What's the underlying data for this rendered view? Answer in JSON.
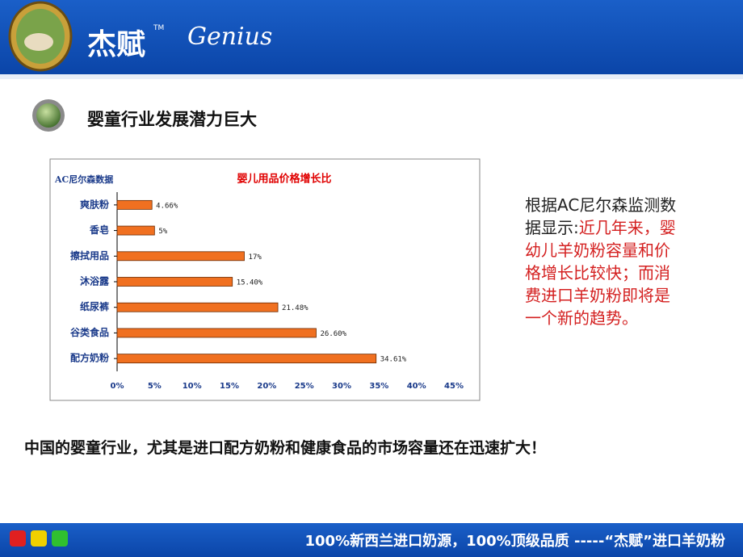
{
  "header": {
    "brand": "杰赋",
    "trademark": "TM",
    "brand_en": "Genius"
  },
  "heading": "婴童行业发展潜力巨大",
  "side_note": {
    "intro": "根据AC尼尔森监测数据显示:",
    "highlight": "近几年来，婴幼儿羊奶粉容量和价格增长比较快；而消费进口羊奶粉即将是一个新的趋势。"
  },
  "statement": "中国的婴童行业，尤其是进口配方奶粉和健康食品的市场容量还在迅速扩大！",
  "footer": "100%新西兰进口奶源，100%顶级品质 -----“杰赋”进口羊奶粉",
  "chart_data": {
    "type": "hbar",
    "title": "婴儿用品价格增长比",
    "annotation": "AC尼尔森数据",
    "categories": [
      "爽肤粉",
      "香皂",
      "擦拭用品",
      "沐浴露",
      "纸尿裤",
      "谷类食品",
      "配方奶粉"
    ],
    "values": [
      4.66,
      5,
      17,
      15.4,
      21.48,
      26.6,
      34.61
    ],
    "value_labels": [
      "4.66%",
      "5%",
      "17%",
      "15.40%",
      "21.48%",
      "26.60%",
      "34.61%"
    ],
    "color": "#f07020",
    "xlim": [
      0,
      45
    ],
    "xticks": [
      {
        "value": 0,
        "label": "0%"
      },
      {
        "value": 5,
        "label": "5%"
      },
      {
        "value": 10,
        "label": "10%"
      },
      {
        "value": 15,
        "label": "15%"
      },
      {
        "value": 20,
        "label": "20%"
      },
      {
        "value": 25,
        "label": "25%"
      },
      {
        "value": 30,
        "label": "30%"
      },
      {
        "value": 35,
        "label": "35%"
      },
      {
        "value": 40,
        "label": "40%"
      },
      {
        "value": 45,
        "label": "45%"
      }
    ],
    "grid": false
  }
}
